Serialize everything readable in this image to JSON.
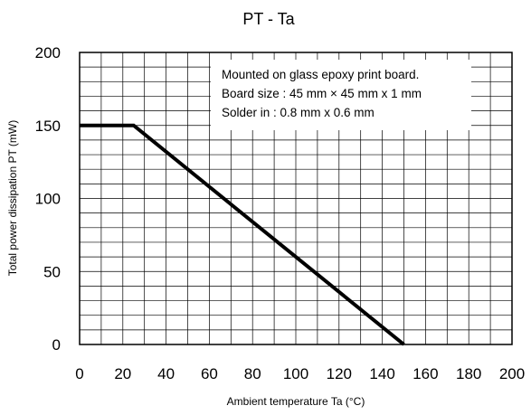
{
  "chart_data": {
    "type": "line",
    "title": "PT - Ta",
    "xlabel": "Ambient temperature Ta (°C)",
    "ylabel": "Total power dissipation PT (mW)",
    "xlim": [
      0,
      200
    ],
    "ylim": [
      0,
      200
    ],
    "xticks": [
      "0",
      "20",
      "40",
      "60",
      "80",
      "100",
      "120",
      "140",
      "160",
      "180",
      "200"
    ],
    "yticks": [
      "0",
      "50",
      "100",
      "150",
      "200"
    ],
    "grid": true,
    "grid_minor_x_step": 10,
    "grid_minor_y_step": 10,
    "series": [
      {
        "x": [
          0,
          25,
          150
        ],
        "y": [
          150,
          150,
          0
        ]
      }
    ],
    "annotations": [
      "Mounted on glass epoxy print board.",
      "Board size : 45 mm × 45 mm x 1 mm",
      "Solder in : 0.8 mm x 0.6 mm"
    ]
  }
}
